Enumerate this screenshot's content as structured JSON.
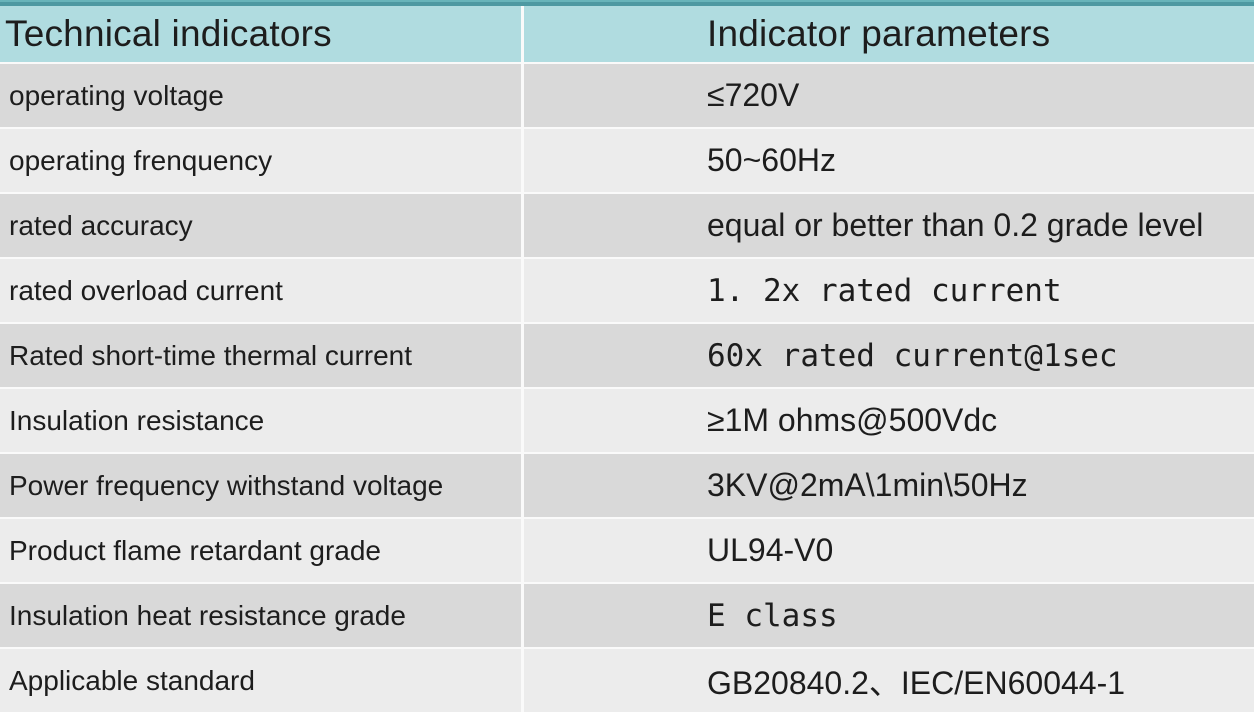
{
  "table": {
    "header": {
      "col1": "Technical indicators",
      "col2": "Indicator parameters"
    },
    "rows": [
      {
        "label": "operating voltage",
        "value": "≤720V",
        "mono": false
      },
      {
        "label": "operating frenquency",
        "value": "50~60Hz",
        "mono": false
      },
      {
        "label": "rated accuracy",
        "value": "equal or better than 0.2 grade level",
        "mono": false
      },
      {
        "label": "rated overload current",
        "value": "1. 2x rated current",
        "mono": true
      },
      {
        "label": "Rated short-time thermal current",
        "value": "60x rated current@1sec",
        "mono": true
      },
      {
        "label": "Insulation resistance",
        "value": "≥1M ohms@500Vdc",
        "mono": false
      },
      {
        "label": "Power frequency withstand voltage",
        "value": "3KV@2mA\\1min\\50Hz",
        "mono": false
      },
      {
        "label": "Product flame retardant grade",
        "value": "UL94-V0",
        "mono": false
      },
      {
        "label": "Insulation heat resistance grade",
        "value": "E class",
        "mono": true
      },
      {
        "label": "Applicable standard",
        "value": "GB20840.2、IEC/EN60044-1",
        "mono": false
      }
    ],
    "colors": {
      "header_bg": "#b0dce0",
      "top_bar_light": "#68b4ba",
      "top_bar_dark": "#4e99a2",
      "row_dark": "#d9d9d9",
      "row_light": "#ececec",
      "grid_line": "#fafafa",
      "text": "#1d1d1d"
    }
  }
}
